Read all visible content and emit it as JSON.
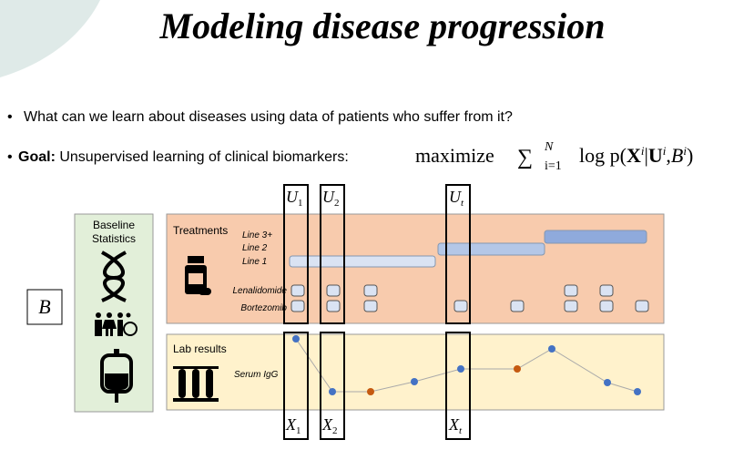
{
  "title": "Modeling disease progression",
  "bullets": [
    {
      "text": "What can we learn about diseases using data of patients who suffer from it?"
    },
    {
      "lead": "Goal:",
      "text": "Unsupervised learning of clinical biomarkers:",
      "formula": {
        "op": "maximize",
        "sum": "∑",
        "upper": "N",
        "lower": "i=1",
        "body": "log p(",
        "x": "X",
        "xi": "i",
        "bar": "|",
        "u": "U",
        "ui": "i",
        "comma": ",",
        "b": "B",
        "bi": "i",
        "close": ")"
      }
    }
  ],
  "diagram": {
    "baseline": {
      "label": "Baseline",
      "label2": "Statistics"
    },
    "b": "B",
    "treatments": {
      "label": "Treatments",
      "lines": [
        "Line 3+",
        "Line 2",
        "Line 1"
      ],
      "drugs": [
        "Lenalidomide",
        "Bortezomib"
      ]
    },
    "lab": {
      "label": "Lab results",
      "marker": "Serum IgG"
    },
    "windows": [
      {
        "u": "U",
        "us": "1",
        "x": "X",
        "xs": "1"
      },
      {
        "u": "U",
        "us": "2",
        "x": "X",
        "xs": "2"
      },
      {
        "u": "U",
        "us": "t",
        "x": "X",
        "xs": "t"
      }
    ]
  }
}
